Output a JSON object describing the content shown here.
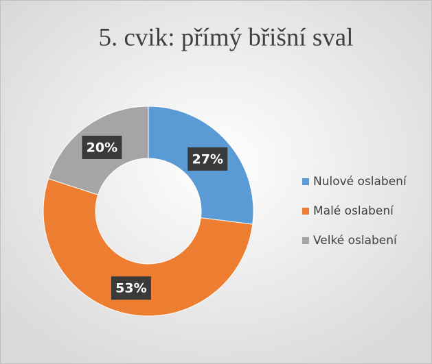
{
  "chart_data": {
    "type": "donut",
    "title": "5. cvik: přímý břišní sval",
    "categories": [
      "Nulové oslabení",
      "Malé oslabení",
      "Velké oslabení"
    ],
    "values": [
      27,
      53,
      20
    ],
    "value_labels": [
      "27%",
      "53%",
      "20%"
    ],
    "colors": [
      "#5b9bd5",
      "#ed7d31",
      "#a5a5a5"
    ],
    "legend": "right"
  }
}
